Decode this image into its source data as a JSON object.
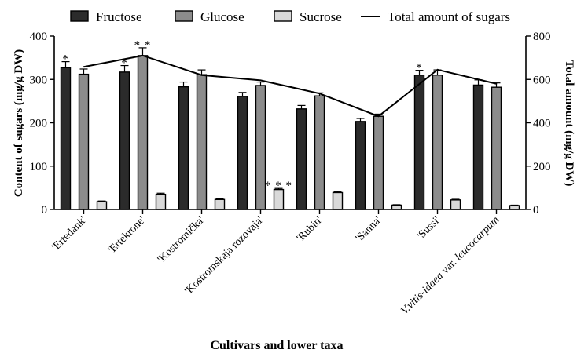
{
  "chart_data": {
    "type": "bar",
    "xlabel": "Cultivars and lower taxa",
    "ylabel": "Content of sugars (mg/g DW)",
    "y2label": "Total amount (mg/g DW)",
    "ylim": [
      0,
      400
    ],
    "y2lim": [
      0,
      800
    ],
    "yticks": [
      "0",
      "100",
      "200",
      "300",
      "400"
    ],
    "y2ticks": [
      "0",
      "200",
      "400",
      "600",
      "800"
    ],
    "categories": [
      {
        "parts": [
          {
            "t": "'Ertedank'",
            "i": false
          }
        ]
      },
      {
        "parts": [
          {
            "t": "'Ertekrone'",
            "i": false
          }
        ]
      },
      {
        "parts": [
          {
            "t": "'Kostromička'",
            "i": false
          }
        ]
      },
      {
        "parts": [
          {
            "t": "'Kostromskaja rozovaja'",
            "i": false
          }
        ]
      },
      {
        "parts": [
          {
            "t": "'Rubin'",
            "i": false
          }
        ]
      },
      {
        "parts": [
          {
            "t": "'Sanna'",
            "i": false
          }
        ]
      },
      {
        "parts": [
          {
            "t": "'Sussi'",
            "i": false
          }
        ]
      },
      {
        "parts": [
          {
            "t": "V.vitis-idaea",
            "i": true
          },
          {
            "t": " var. ",
            "i": false
          },
          {
            "t": "leucocarpum",
            "i": true
          }
        ]
      }
    ],
    "series": [
      {
        "name": "Fructose",
        "color": "#2b2b2b",
        "values": [
          327,
          317,
          283,
          261,
          232,
          203,
          310,
          287
        ],
        "errors": [
          14,
          15,
          11,
          9,
          8,
          7,
          11,
          12
        ]
      },
      {
        "name": "Glucose",
        "color": "#8c8c8c",
        "values": [
          312,
          355,
          311,
          286,
          262,
          215,
          310,
          282
        ],
        "errors": [
          12,
          18,
          11,
          8,
          7,
          5,
          12,
          10
        ]
      },
      {
        "name": "Sucrose",
        "color": "#d9d9d9",
        "values": [
          18,
          35,
          23,
          46,
          39,
          10,
          22,
          9
        ],
        "errors": [
          1.5,
          2.5,
          1.5,
          2.5,
          2,
          1,
          1.5,
          1
        ]
      }
    ],
    "line": {
      "name": "Total amount of sugars",
      "color": "#000000",
      "values": [
        658,
        710,
        620,
        596,
        535,
        430,
        645,
        580
      ]
    },
    "annotations": [
      {
        "category": 0,
        "series": 0,
        "text": "*"
      },
      {
        "category": 1,
        "series": 0,
        "text": "*"
      },
      {
        "category": 1,
        "series": 1,
        "text": "**"
      },
      {
        "category": 3,
        "series": 2,
        "text": "***"
      },
      {
        "category": 6,
        "series": 0,
        "text": "*"
      }
    ],
    "legend_position": "top"
  }
}
